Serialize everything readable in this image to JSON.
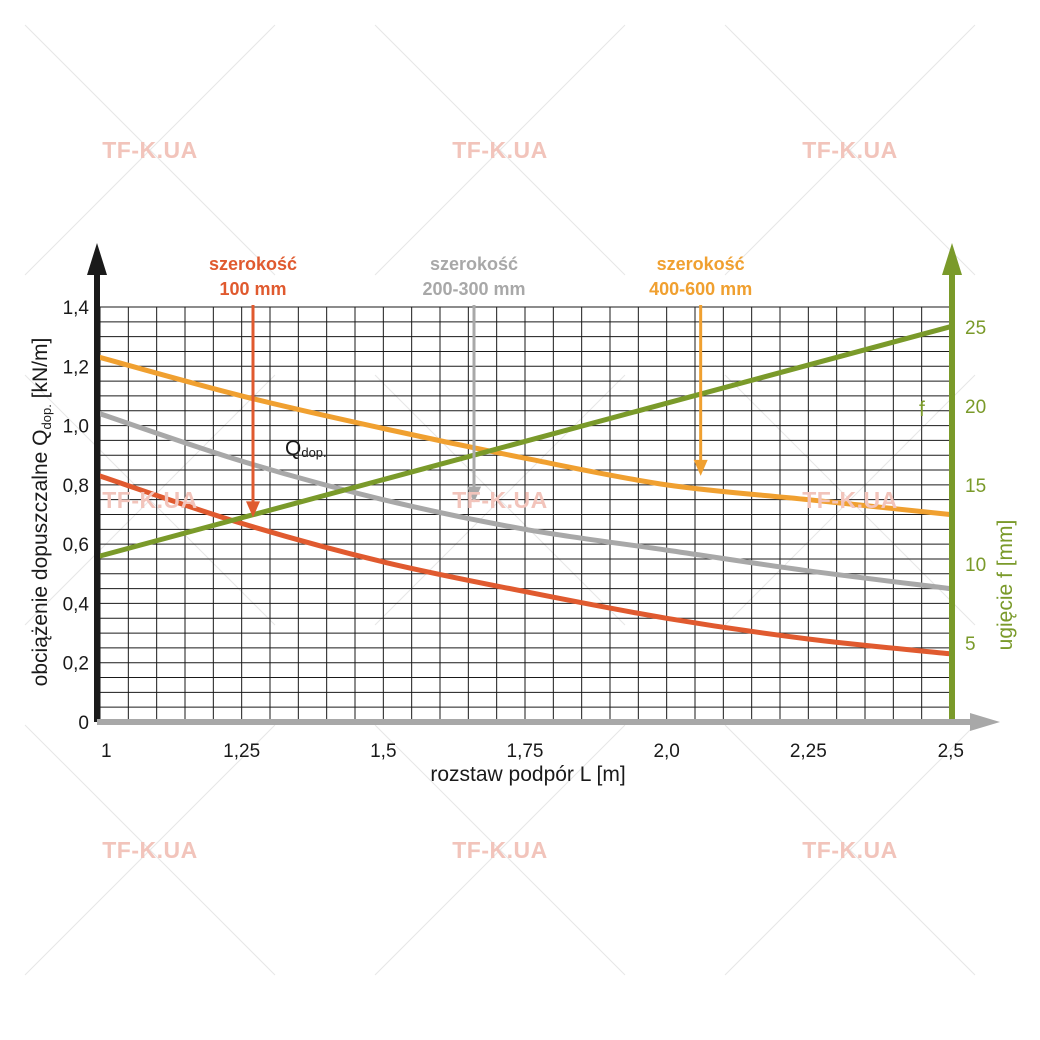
{
  "watermark": "TF-K.UA",
  "chart_data": {
    "type": "line",
    "xlabel": "rozstaw podpór L [m]",
    "ylabel_main": "obciążenie dopuszczalne Q",
    "ylabel_sub": "dop.",
    "ylabel_unit": " [kN/m]",
    "y2label": "ugięcie f [mm]",
    "x_ticks": [
      {
        "v": 1.0,
        "label": "1"
      },
      {
        "v": 1.25,
        "label": "1,25"
      },
      {
        "v": 1.5,
        "label": "1,5"
      },
      {
        "v": 1.75,
        "label": "1,75"
      },
      {
        "v": 2.0,
        "label": "2,0"
      },
      {
        "v": 2.25,
        "label": "2,25"
      },
      {
        "v": 2.5,
        "label": "2,5"
      }
    ],
    "y_ticks": [
      {
        "v": 0,
        "label": "0"
      },
      {
        "v": 0.2,
        "label": "0,2"
      },
      {
        "v": 0.4,
        "label": "0,4"
      },
      {
        "v": 0.6,
        "label": "0,6"
      },
      {
        "v": 0.8,
        "label": "0,8"
      },
      {
        "v": 1.0,
        "label": "1,0"
      },
      {
        "v": 1.2,
        "label": "1,2"
      },
      {
        "v": 1.4,
        "label": "1,4"
      }
    ],
    "y2_ticks": [
      {
        "v": 5,
        "label": "5"
      },
      {
        "v": 10,
        "label": "10"
      },
      {
        "v": 15,
        "label": "15"
      },
      {
        "v": 20,
        "label": "20"
      },
      {
        "v": 25,
        "label": "25"
      }
    ],
    "xlim": [
      1.0,
      2.5
    ],
    "ylim": [
      0,
      1.4
    ],
    "y2lim": [
      0,
      26.25
    ],
    "grid": true,
    "q_label": "Q",
    "q_label_sub": "dop.",
    "f_label": "f",
    "series": [
      {
        "key": "w100",
        "axis": "left",
        "color": "#e05a2f",
        "x": [
          1.0,
          1.25,
          1.5,
          1.75,
          2.0,
          2.25,
          2.5
        ],
        "y": [
          0.83,
          0.67,
          0.54,
          0.44,
          0.35,
          0.28,
          0.23
        ]
      },
      {
        "key": "w200",
        "axis": "left",
        "color": "#a8a8a8",
        "x": [
          1.0,
          1.25,
          1.5,
          1.75,
          2.0,
          2.25,
          2.5
        ],
        "y": [
          1.04,
          0.88,
          0.75,
          0.65,
          0.58,
          0.51,
          0.45
        ]
      },
      {
        "key": "w400",
        "axis": "left",
        "color": "#f0a030",
        "x": [
          1.0,
          1.25,
          1.5,
          1.75,
          2.0,
          2.25,
          2.5
        ],
        "y": [
          1.23,
          1.1,
          0.99,
          0.89,
          0.8,
          0.75,
          0.7
        ]
      },
      {
        "key": "f",
        "axis": "right",
        "color": "#7a9a2a",
        "x": [
          1.0,
          2.5
        ],
        "y": [
          10.5,
          25.0
        ]
      }
    ],
    "callouts": [
      {
        "line1": "szerokość",
        "line2": "100 mm",
        "color": "#e05a2f",
        "x": 1.27,
        "y": 0.67
      },
      {
        "line1": "szerokość",
        "line2": "200-300 mm",
        "color": "#a8a8a8",
        "x": 1.66,
        "y": 0.72
      },
      {
        "line1": "szerokość",
        "line2": "400-600 mm",
        "color": "#f0a030",
        "x": 2.06,
        "y": 0.81
      }
    ]
  }
}
